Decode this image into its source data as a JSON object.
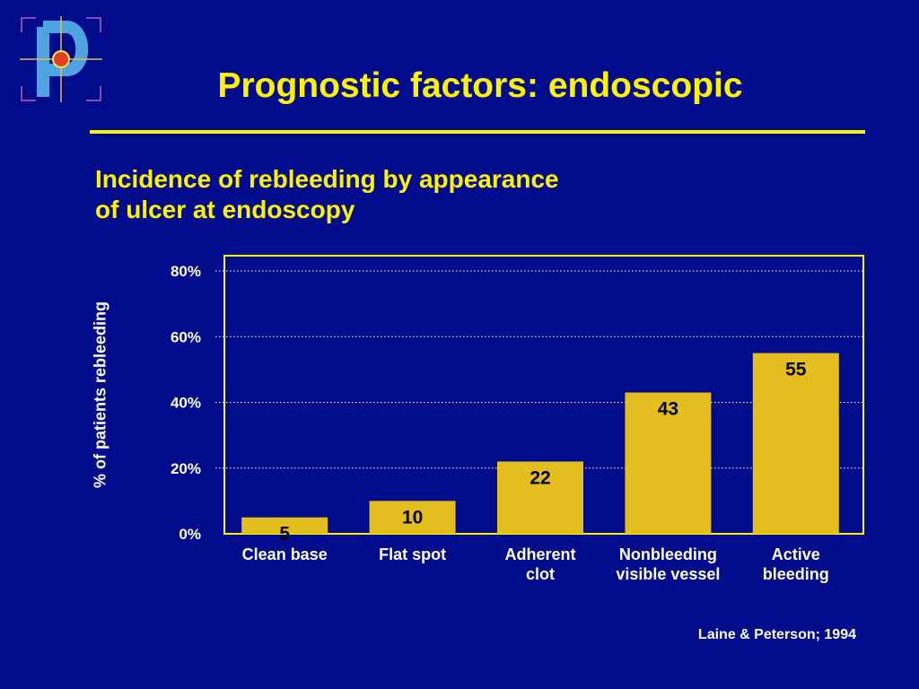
{
  "slide": {
    "title": "Prognostic factors: endoscopic",
    "subtitle_lines": [
      "Incidence of rebleeding by appearance",
      "of ulcer at endoscopy"
    ],
    "citation": "Laine & Peterson; 1994",
    "colors": {
      "background": "#000C8C",
      "accent": "#FFF200",
      "bar": "#E3BE1E",
      "text": "#FFFFFF"
    }
  },
  "chart_data": {
    "type": "bar",
    "title": "",
    "ylabel": "% of patients rebleeding",
    "xlabel": "",
    "ylim": [
      0,
      80
    ],
    "yticks": [
      0,
      20,
      40,
      60,
      80
    ],
    "ytick_labels": [
      "0%",
      "20%",
      "40%",
      "60%",
      "80%"
    ],
    "grid": true,
    "categories": [
      [
        "Clean base"
      ],
      [
        "Flat spot"
      ],
      [
        "Adherent",
        "clot"
      ],
      [
        "Nonbleeding",
        "visible vessel"
      ],
      [
        "Active",
        "bleeding"
      ]
    ],
    "values": [
      5,
      10,
      22,
      43,
      55
    ],
    "data_labels": [
      "5",
      "10",
      "22",
      "43",
      "55"
    ]
  }
}
